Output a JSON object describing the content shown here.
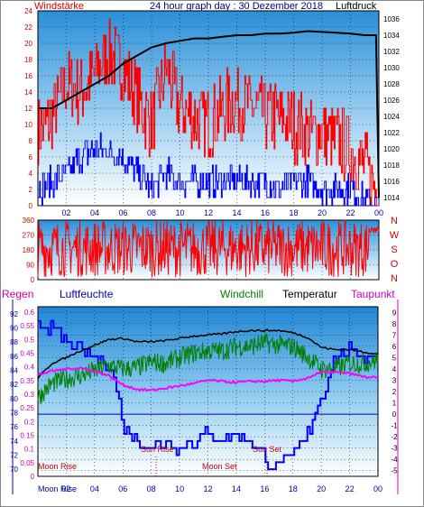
{
  "chart_data": [
    {
      "type": "line",
      "title": "24 hour graph day : 30 Dezember 2018",
      "left_label": "Windstärke",
      "right_label": "Luftdruck",
      "left_ticks": [
        "0",
        "2",
        "4",
        "6",
        "8",
        "10",
        "12",
        "14",
        "16",
        "18",
        "20",
        "22",
        "24"
      ],
      "right_ticks": [
        "1014",
        "1016",
        "1018",
        "1020",
        "1022",
        "1024",
        "1026",
        "1028",
        "1030",
        "1032",
        "1034",
        "1036"
      ],
      "x_ticks": [
        "02",
        "04",
        "06",
        "08",
        "10",
        "12",
        "14",
        "16",
        "18",
        "20",
        "22",
        "00"
      ],
      "series": [
        {
          "color": "#ff0000",
          "x": [
            0,
            1,
            2,
            3,
            4,
            5,
            6,
            7,
            8,
            9,
            10,
            11,
            12,
            13,
            14,
            15,
            16,
            17,
            18,
            19,
            20,
            21,
            22,
            23,
            24
          ],
          "values": [
            9,
            11,
            15,
            14,
            16,
            19,
            17,
            13,
            10,
            17,
            12,
            11,
            10,
            12,
            13,
            12,
            11,
            11,
            10,
            9,
            9,
            8,
            7,
            5,
            1
          ]
        },
        {
          "color": "#0000ff",
          "x": [
            0,
            1,
            2,
            3,
            4,
            5,
            6,
            7,
            8,
            9,
            10,
            11,
            12,
            13,
            14,
            15,
            16,
            17,
            18,
            19,
            20,
            21,
            22,
            23,
            24
          ],
          "values": [
            2,
            3,
            4,
            6,
            7,
            7,
            6,
            4,
            2,
            4,
            3,
            3,
            3,
            3,
            3,
            3,
            3,
            2,
            3,
            3,
            2,
            2,
            2,
            1,
            0
          ]
        },
        {
          "color": "#000000",
          "x": [
            0,
            1,
            2,
            3,
            4,
            5,
            6,
            7,
            8,
            9,
            10,
            11,
            12,
            13,
            14,
            15,
            16,
            17,
            18,
            19,
            20,
            21,
            22,
            23,
            23.8,
            24
          ],
          "values": [
            1025,
            1025,
            1026,
            1027,
            1028,
            1029,
            1030.5,
            1031.5,
            1032.5,
            1033,
            1033.3,
            1033.6,
            1033.6,
            1033.8,
            1034,
            1034,
            1034.2,
            1034.2,
            1034.3,
            1034.5,
            1034.4,
            1034.3,
            1034.2,
            1034.0,
            1034.0,
            1014
          ]
        }
      ]
    },
    {
      "type": "line",
      "left_ticks": [
        "0",
        "90",
        "180",
        "270",
        "360"
      ],
      "right_ticks": [
        "N",
        "W",
        "S",
        "O",
        "N"
      ],
      "series": [
        {
          "color": "#ff0000"
        }
      ]
    },
    {
      "type": "line",
      "labels": {
        "regen": "Regen",
        "luftfeuchte": "Luftfeuchte",
        "windchill": "Windchill",
        "temperatur": "Temperatur",
        "taupunkt": "Taupunkt"
      },
      "humidity_ticks": [
        "70",
        "72",
        "74",
        "76",
        "78",
        "80",
        "82",
        "84",
        "86",
        "88",
        "90",
        "92"
      ],
      "rain_ticks": [
        "0",
        "0.05",
        "0.1",
        "0.15",
        "0.2",
        "0.25",
        "0.3",
        "0.35",
        "0.4",
        "0.45",
        "0.5",
        "0.55",
        "0.6"
      ],
      "temp_ticks": [
        "-5",
        "-4",
        "-3",
        "-2",
        "-1",
        "0",
        "1",
        "2",
        "3",
        "4",
        "5",
        "6",
        "7",
        "8",
        "9"
      ],
      "x_ticks": [
        "Moon Rise",
        "02",
        "04",
        "06",
        "08",
        "10",
        "12",
        "14",
        "16",
        "18",
        "20",
        "22",
        "00"
      ],
      "annotations": {
        "moon_rise": "Moon Rise",
        "sun_rise": "Sun Rise",
        "moon_set": "Moon Set",
        "sun_set": "Sun Set"
      },
      "series": [
        {
          "name": "Luftfeuchte",
          "color": "#0000ff",
          "x": [
            0,
            0.8,
            1.5,
            2,
            3,
            4,
            5,
            5.5,
            6,
            7,
            8,
            9,
            10,
            11,
            12,
            13,
            14,
            15,
            16,
            16.5,
            17,
            18,
            19,
            20,
            21,
            22,
            23,
            24
          ],
          "values": [
            91,
            90,
            89,
            88,
            87,
            86,
            85,
            82,
            76,
            74,
            73,
            74,
            73,
            74,
            75,
            74,
            75,
            74,
            72,
            70,
            71,
            72,
            75,
            80,
            86,
            87,
            86,
            86
          ]
        },
        {
          "name": "Temperatur",
          "color": "#000000",
          "x": [
            0,
            1,
            2,
            3,
            4,
            5,
            6,
            7,
            8,
            9,
            10,
            11,
            12,
            13,
            14,
            15,
            16,
            17,
            18,
            19,
            20,
            21,
            22,
            23,
            24
          ],
          "values": [
            3.2,
            4.5,
            5.0,
            5.6,
            6.1,
            6.6,
            6.7,
            6.4,
            6.4,
            6.5,
            6.7,
            6.9,
            7.0,
            7.1,
            7.3,
            7.4,
            7.4,
            7.4,
            7.2,
            6.8,
            5.9,
            5.7,
            5.7,
            5.5,
            5.3
          ]
        },
        {
          "name": "Windchill",
          "color": "#008000",
          "x": [
            0,
            1,
            2,
            3,
            4,
            5,
            6,
            7,
            8,
            9,
            10,
            11,
            12,
            13,
            14,
            15,
            16,
            17,
            18,
            19,
            20,
            21,
            22,
            23,
            24
          ],
          "values": [
            1.5,
            2.7,
            3.1,
            3.4,
            3.8,
            4.3,
            4.0,
            4.1,
            4.6,
            4.5,
            5.0,
            5.4,
            5.6,
            5.6,
            6.0,
            6.0,
            6.3,
            6.1,
            6.0,
            5.1,
            4.0,
            4.0,
            4.5,
            4.5,
            4.8
          ]
        },
        {
          "name": "Taupunkt",
          "color": "#ff00ff",
          "x": [
            0,
            1,
            2,
            3,
            4,
            5,
            6,
            7,
            8,
            9,
            10,
            11,
            12,
            13,
            14,
            15,
            16,
            17,
            18,
            19,
            20,
            21,
            22,
            23,
            24
          ],
          "values": [
            3.5,
            3.8,
            4.0,
            4.1,
            3.8,
            3.4,
            2.6,
            2.2,
            2.1,
            2.3,
            2.5,
            2.7,
            3.0,
            2.9,
            2.8,
            2.9,
            2.9,
            3.0,
            2.9,
            3.2,
            3.7,
            3.7,
            3.6,
            3.3,
            3.2
          ]
        }
      ]
    }
  ]
}
